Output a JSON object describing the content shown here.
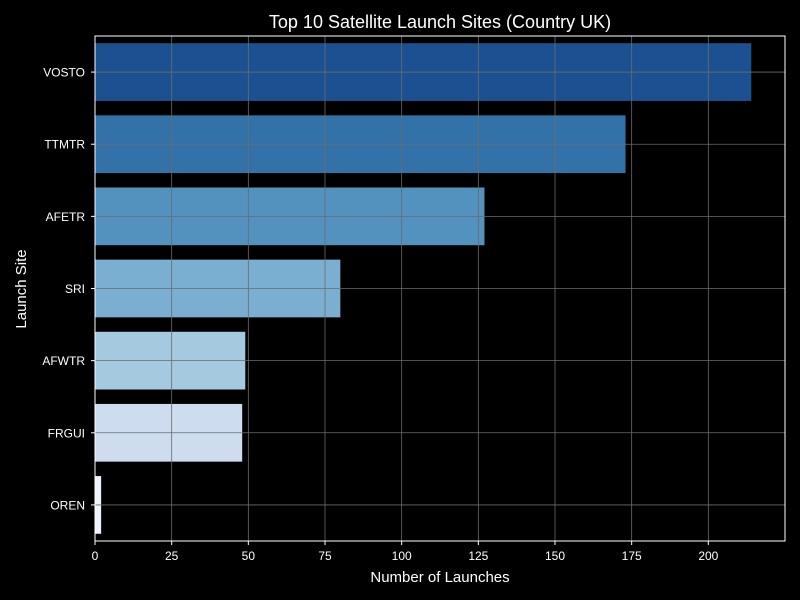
{
  "theme": {
    "background": "#000000",
    "axis_color": "#ffffff",
    "grid_color": "#6b6b6b",
    "text_color": "#ffffff"
  },
  "chart_data": {
    "type": "bar",
    "orientation": "horizontal",
    "title": "Top 10 Satellite Launch Sites (Country UK)",
    "xlabel": "Number of Launches",
    "ylabel": "Launch Site",
    "categories": [
      "VOSTO",
      "TTMTR",
      "AFETR",
      "SRI",
      "AFWTR",
      "FRGUI",
      "OREN"
    ],
    "values": [
      214,
      173,
      127,
      80,
      49,
      48,
      2
    ],
    "bar_colors": [
      "#1b5190",
      "#3372a8",
      "#5391bf",
      "#7aafd1",
      "#a5c9de",
      "#cddcee",
      "#eef4fb"
    ],
    "xlim": [
      0,
      225
    ],
    "xticks": [
      0,
      25,
      50,
      75,
      100,
      125,
      150,
      175,
      200
    ],
    "grid": true
  }
}
